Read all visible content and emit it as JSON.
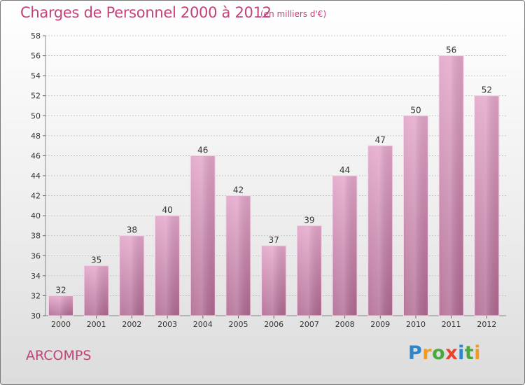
{
  "header": {
    "title": "Charges de Personnel 2000 à 2012",
    "unit": "(en milliers d'€)"
  },
  "footer": {
    "commune": "ARCOMPS",
    "logo_letters": [
      "P",
      "r",
      "o",
      "x",
      "i",
      "t",
      "i"
    ],
    "logo_colors": [
      "#2e86c8",
      "#f29a1e",
      "#4aa83c",
      "#e8432c",
      "#2e86c8",
      "#4aa83c",
      "#f29a1e"
    ]
  },
  "chart_data": {
    "type": "bar",
    "title": "Charges de Personnel 2000 à 2012",
    "subtitle": "(en milliers d'€)",
    "categories": [
      "2000",
      "2001",
      "2002",
      "2003",
      "2004",
      "2005",
      "2006",
      "2007",
      "2008",
      "2009",
      "2010",
      "2011",
      "2012"
    ],
    "values": [
      32,
      35,
      38,
      40,
      46,
      42,
      37,
      39,
      44,
      47,
      50,
      56,
      52
    ],
    "ylim": [
      30,
      58
    ],
    "yticks": [
      30,
      32,
      34,
      36,
      38,
      40,
      42,
      44,
      46,
      48,
      50,
      52,
      54,
      56,
      58
    ],
    "grid": true,
    "xlabel": "",
    "ylabel": "",
    "colors": {
      "bar_top": "#e3a6ca",
      "bar_bottom": "#b06a92",
      "text": "#333333",
      "grid": "#bbbbbb"
    }
  }
}
